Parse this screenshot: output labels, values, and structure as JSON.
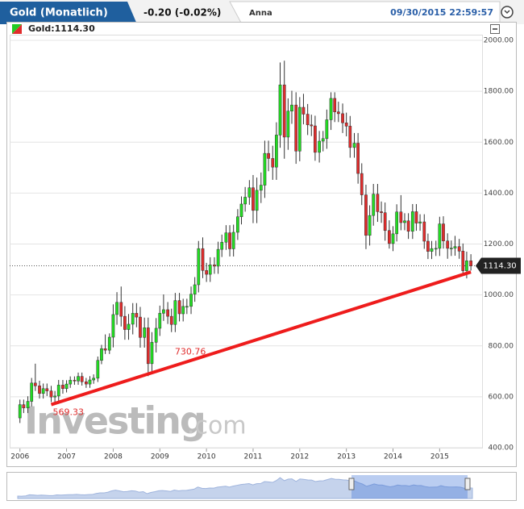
{
  "header": {
    "title": "Gold (Monatlich)",
    "change": "-0.20 (-0.02%)",
    "user": "Anna",
    "timestamp": "09/30/2015 22:59:57"
  },
  "chart_data": {
    "type": "candlestick",
    "legend": "Gold:1114.30",
    "watermark": {
      "brand": "Investing",
      "suffix": ".com"
    },
    "up_color": "#22dd22",
    "down_color": "#e02c2c",
    "x": [
      2006,
      2006.08,
      2006.17,
      2006.25,
      2006.33,
      2006.42,
      2006.5,
      2006.58,
      2006.67,
      2006.75,
      2006.83,
      2006.92,
      2007,
      2007.08,
      2007.17,
      2007.25,
      2007.33,
      2007.42,
      2007.5,
      2007.58,
      2007.67,
      2007.75,
      2007.83,
      2007.92,
      2008,
      2008.08,
      2008.17,
      2008.25,
      2008.33,
      2008.42,
      2008.5,
      2008.58,
      2008.67,
      2008.75,
      2008.83,
      2008.92,
      2009,
      2009.08,
      2009.17,
      2009.25,
      2009.33,
      2009.42,
      2009.5,
      2009.58,
      2009.67,
      2009.75,
      2009.83,
      2009.92,
      2010,
      2010.08,
      2010.17,
      2010.25,
      2010.33,
      2010.42,
      2010.5,
      2010.58,
      2010.67,
      2010.75,
      2010.83,
      2010.92,
      2011,
      2011.08,
      2011.17,
      2011.25,
      2011.33,
      2011.42,
      2011.5,
      2011.58,
      2011.67,
      2011.75,
      2011.83,
      2011.92,
      2012,
      2012.08,
      2012.17,
      2012.25,
      2012.33,
      2012.42,
      2012.5,
      2012.58,
      2012.67,
      2012.75,
      2012.83,
      2012.92,
      2013,
      2013.08,
      2013.17,
      2013.25,
      2013.33,
      2013.42,
      2013.5,
      2013.58,
      2013.67,
      2013.75,
      2013.83,
      2013.92,
      2014,
      2014.08,
      2014.17,
      2014.25,
      2014.33,
      2014.42,
      2014.5,
      2014.58,
      2014.67,
      2014.75,
      2014.83,
      2014.92,
      2015,
      2015.08,
      2015.17,
      2015.25,
      2015.33,
      2015.42,
      2015.5,
      2015.58,
      2015.67
    ],
    "open": [
      517,
      569,
      556,
      582,
      654,
      643,
      613,
      632,
      623,
      599,
      603,
      646,
      632,
      650,
      665,
      662,
      680,
      659,
      650,
      666,
      673,
      743,
      789,
      783,
      834,
      923,
      971,
      916,
      864,
      885,
      928,
      913,
      833,
      871,
      730,
      814,
      869,
      928,
      942,
      916,
      884,
      978,
      926,
      955,
      955,
      1003,
      1040,
      1182,
      1096,
      1081,
      1118,
      1113,
      1179,
      1207,
      1244,
      1181,
      1246,
      1307,
      1357,
      1384,
      1421,
      1332,
      1411,
      1431,
      1556,
      1536,
      1502,
      1628,
      1825,
      1620,
      1722,
      1746,
      1565,
      1737,
      1710,
      1668,
      1664,
      1560,
      1604,
      1614,
      1688,
      1772,
      1719,
      1712,
      1676,
      1663,
      1579,
      1596,
      1477,
      1393,
      1234,
      1312,
      1396,
      1327,
      1323,
      1253,
      1202,
      1240,
      1326,
      1284,
      1291,
      1250,
      1327,
      1282,
      1287,
      1211,
      1171,
      1182,
      1183,
      1279,
      1212,
      1183,
      1184,
      1190,
      1172,
      1095,
      1134
    ],
    "high": [
      589,
      589,
      602,
      674,
      730,
      663,
      652,
      652,
      643,
      623,
      666,
      666,
      665,
      680,
      680,
      695,
      695,
      674,
      681,
      688,
      758,
      804,
      845,
      849,
      963,
      1011,
      1033,
      956,
      925,
      968,
      968,
      953,
      911,
      911,
      854,
      909,
      958,
      1002,
      972,
      946,
      1008,
      1008,
      985,
      985,
      1033,
      1070,
      1212,
      1226,
      1126,
      1148,
      1148,
      1209,
      1237,
      1274,
      1274,
      1276,
      1337,
      1387,
      1424,
      1451,
      1471,
      1461,
      1481,
      1606,
      1606,
      1586,
      1678,
      1913,
      1920,
      1772,
      1802,
      1796,
      1777,
      1790,
      1750,
      1708,
      1704,
      1644,
      1644,
      1728,
      1796,
      1796,
      1759,
      1752,
      1716,
      1703,
      1636,
      1636,
      1517,
      1433,
      1352,
      1436,
      1436,
      1367,
      1363,
      1293,
      1270,
      1356,
      1392,
      1321,
      1321,
      1357,
      1357,
      1317,
      1317,
      1241,
      1212,
      1213,
      1307,
      1309,
      1242,
      1214,
      1232,
      1220,
      1202,
      1170,
      1160
    ],
    "low": [
      497,
      536,
      536,
      562,
      623,
      593,
      593,
      603,
      579,
      579,
      583,
      612,
      617,
      635,
      647,
      647,
      644,
      635,
      635,
      651,
      658,
      728,
      768,
      768,
      794,
      883,
      876,
      824,
      824,
      845,
      873,
      793,
      793,
      681,
      690,
      774,
      839,
      898,
      886,
      854,
      854,
      896,
      896,
      925,
      925,
      973,
      1010,
      1066,
      1051,
      1051,
      1083,
      1083,
      1149,
      1177,
      1151,
      1151,
      1216,
      1277,
      1327,
      1354,
      1282,
      1282,
      1361,
      1381,
      1486,
      1452,
      1452,
      1578,
      1535,
      1570,
      1672,
      1515,
      1525,
      1670,
      1628,
      1624,
      1527,
      1520,
      1564,
      1574,
      1648,
      1679,
      1679,
      1636,
      1623,
      1539,
      1539,
      1437,
      1353,
      1180,
      1194,
      1272,
      1287,
      1283,
      1213,
      1182,
      1172,
      1210,
      1254,
      1254,
      1220,
      1220,
      1252,
      1252,
      1181,
      1141,
      1141,
      1153,
      1153,
      1182,
      1142,
      1153,
      1154,
      1142,
      1077,
      1065,
      1096
    ],
    "close": [
      569,
      556,
      582,
      654,
      643,
      613,
      632,
      623,
      599,
      603,
      646,
      632,
      650,
      665,
      662,
      680,
      659,
      650,
      666,
      673,
      743,
      789,
      783,
      834,
      923,
      971,
      916,
      864,
      885,
      928,
      913,
      833,
      871,
      730,
      814,
      869,
      928,
      942,
      916,
      884,
      978,
      926,
      955,
      955,
      1003,
      1040,
      1182,
      1096,
      1081,
      1118,
      1113,
      1179,
      1207,
      1244,
      1181,
      1246,
      1307,
      1357,
      1384,
      1421,
      1332,
      1411,
      1431,
      1556,
      1536,
      1502,
      1628,
      1825,
      1620,
      1722,
      1746,
      1565,
      1737,
      1710,
      1668,
      1664,
      1560,
      1604,
      1614,
      1688,
      1772,
      1719,
      1712,
      1676,
      1663,
      1579,
      1596,
      1477,
      1393,
      1234,
      1312,
      1396,
      1327,
      1323,
      1253,
      1202,
      1240,
      1326,
      1284,
      1291,
      1250,
      1327,
      1282,
      1287,
      1211,
      1171,
      1182,
      1183,
      1279,
      1212,
      1183,
      1184,
      1190,
      1172,
      1095,
      1134,
      1114
    ],
    "last_price": {
      "value": 1114.3,
      "label": "1114.30"
    },
    "trendline": {
      "color": "#ee1c1c",
      "x": [
        2006.67,
        2009.46,
        2015.67
      ],
      "y": [
        569.33,
        730.76,
        1090
      ]
    },
    "xlim": [
      2005.78,
      2015.91
    ],
    "xticks": [
      2006,
      2007,
      2008,
      2009,
      2010,
      2011,
      2012,
      2013,
      2014,
      2015
    ],
    "ylim": [
      400,
      2000
    ],
    "yticks": [
      {
        "value": 400,
        "label": "400.00"
      },
      {
        "value": 600,
        "label": "600.00"
      },
      {
        "value": 800,
        "label": "800.00"
      },
      {
        "value": 1000,
        "label": "1000.00"
      },
      {
        "value": 1200,
        "label": "1200.00"
      },
      {
        "value": 1400,
        "label": "1400.00"
      },
      {
        "value": 1600,
        "label": "1600.00"
      },
      {
        "value": 1800,
        "label": "1800.00"
      },
      {
        "value": 2000,
        "label": "2000.00"
      }
    ],
    "grid": true
  }
}
